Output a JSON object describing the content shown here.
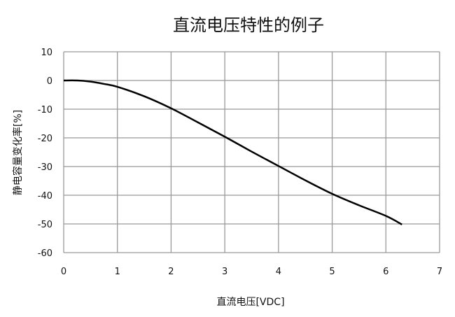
{
  "chart_data": {
    "type": "line",
    "title": "直流电压特性的例子",
    "xlabel": "直流电压[VDC]",
    "ylabel": "静电容量变化率[%]",
    "xlim": [
      0,
      7
    ],
    "ylim": [
      -60,
      10
    ],
    "xticks": [
      0,
      1,
      2,
      3,
      4,
      5,
      6,
      7
    ],
    "yticks": [
      10,
      0,
      -10,
      -20,
      -30,
      -40,
      -50,
      -60
    ],
    "grid": true,
    "colors": {
      "line": "#000000",
      "grid": "#999999"
    },
    "series": [
      {
        "x": [
          0,
          0.25,
          0.5,
          0.75,
          1,
          1.5,
          2,
          2.5,
          3,
          3.5,
          4,
          4.5,
          5,
          5.5,
          6,
          6.3
        ],
        "y": [
          0,
          0,
          -0.4,
          -1.2,
          -2.2,
          -5.5,
          -9.7,
          -14.6,
          -19.6,
          -24.8,
          -29.8,
          -34.8,
          -39.5,
          -43.5,
          -47.2,
          -50.2
        ]
      }
    ]
  }
}
